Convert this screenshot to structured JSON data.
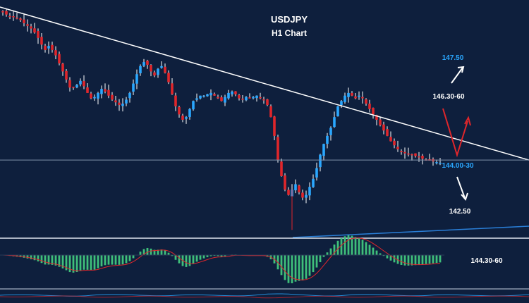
{
  "header": {
    "title": "USDJPY",
    "subtitle": "H1 Chart"
  },
  "colors": {
    "background": "#0e1f3d",
    "bull": "#2aa7ff",
    "bear": "#e0262b",
    "wick": "#ffffff",
    "annotation_white": "#ffffff",
    "annotation_blue": "#2aa7ff",
    "histogram": "#3fbf7a",
    "signal": "#e0262b",
    "support_line": "#2a7fd8",
    "trend_line": "#ffffff"
  },
  "chart_data": [
    {
      "type": "candlestick",
      "title": "USDJPY",
      "subtitle": "H1 Chart",
      "ylim": [
        141.6,
        150.0
      ],
      "candles_count": 125,
      "close_path": [
        149.8,
        149.72,
        149.65,
        149.62,
        149.58,
        149.52,
        149.4,
        149.3,
        149.2,
        149.05,
        148.85,
        148.6,
        148.4,
        148.55,
        148.4,
        148.2,
        147.9,
        147.6,
        147.3,
        147.0,
        147.0,
        147.1,
        147.25,
        147.05,
        146.8,
        146.6,
        146.65,
        146.8,
        146.95,
        146.85,
        146.7,
        146.55,
        146.45,
        146.35,
        146.4,
        146.55,
        146.8,
        147.15,
        147.5,
        147.8,
        147.95,
        147.85,
        147.6,
        147.45,
        147.7,
        147.8,
        147.55,
        147.2,
        146.75,
        146.3,
        146.0,
        145.8,
        145.9,
        146.2,
        146.5,
        146.6,
        146.7,
        146.7,
        146.75,
        146.8,
        146.7,
        146.6,
        146.5,
        146.65,
        146.8,
        146.85,
        146.75,
        146.6,
        146.55,
        146.65,
        146.6,
        146.65,
        146.7,
        146.6,
        146.55,
        146.35,
        145.9,
        145.2,
        144.3,
        143.7,
        143.2,
        143.0,
        143.2,
        143.4,
        143.1,
        142.9,
        143.0,
        143.3,
        143.6,
        144.0,
        144.5,
        144.9,
        145.2,
        145.5,
        145.9,
        146.3,
        146.5,
        146.7,
        146.8,
        146.7,
        146.6,
        146.7,
        146.6,
        146.4,
        146.2,
        146.0,
        145.8,
        145.6,
        145.4,
        145.2,
        145.0,
        144.85,
        144.7,
        144.6,
        144.55,
        144.52,
        144.5,
        144.45,
        144.4,
        144.35,
        144.3,
        144.28,
        144.25,
        144.22,
        144.2
      ],
      "trendline": {
        "from": 150.0,
        "to": 144.3
      },
      "horizontal_level": 144.3,
      "projection": [
        "146.30-60",
        "144.00-30",
        "147.50",
        "142.50"
      ],
      "annotations": [
        {
          "text": "147.50",
          "color": "blue"
        },
        {
          "text": "146.30-60",
          "color": "white"
        },
        {
          "text": "144.00-30",
          "color": "blue"
        },
        {
          "text": "142.50",
          "color": "white"
        }
      ]
    },
    {
      "type": "histogram",
      "label": "144.30-60",
      "signal_line": true
    }
  ]
}
